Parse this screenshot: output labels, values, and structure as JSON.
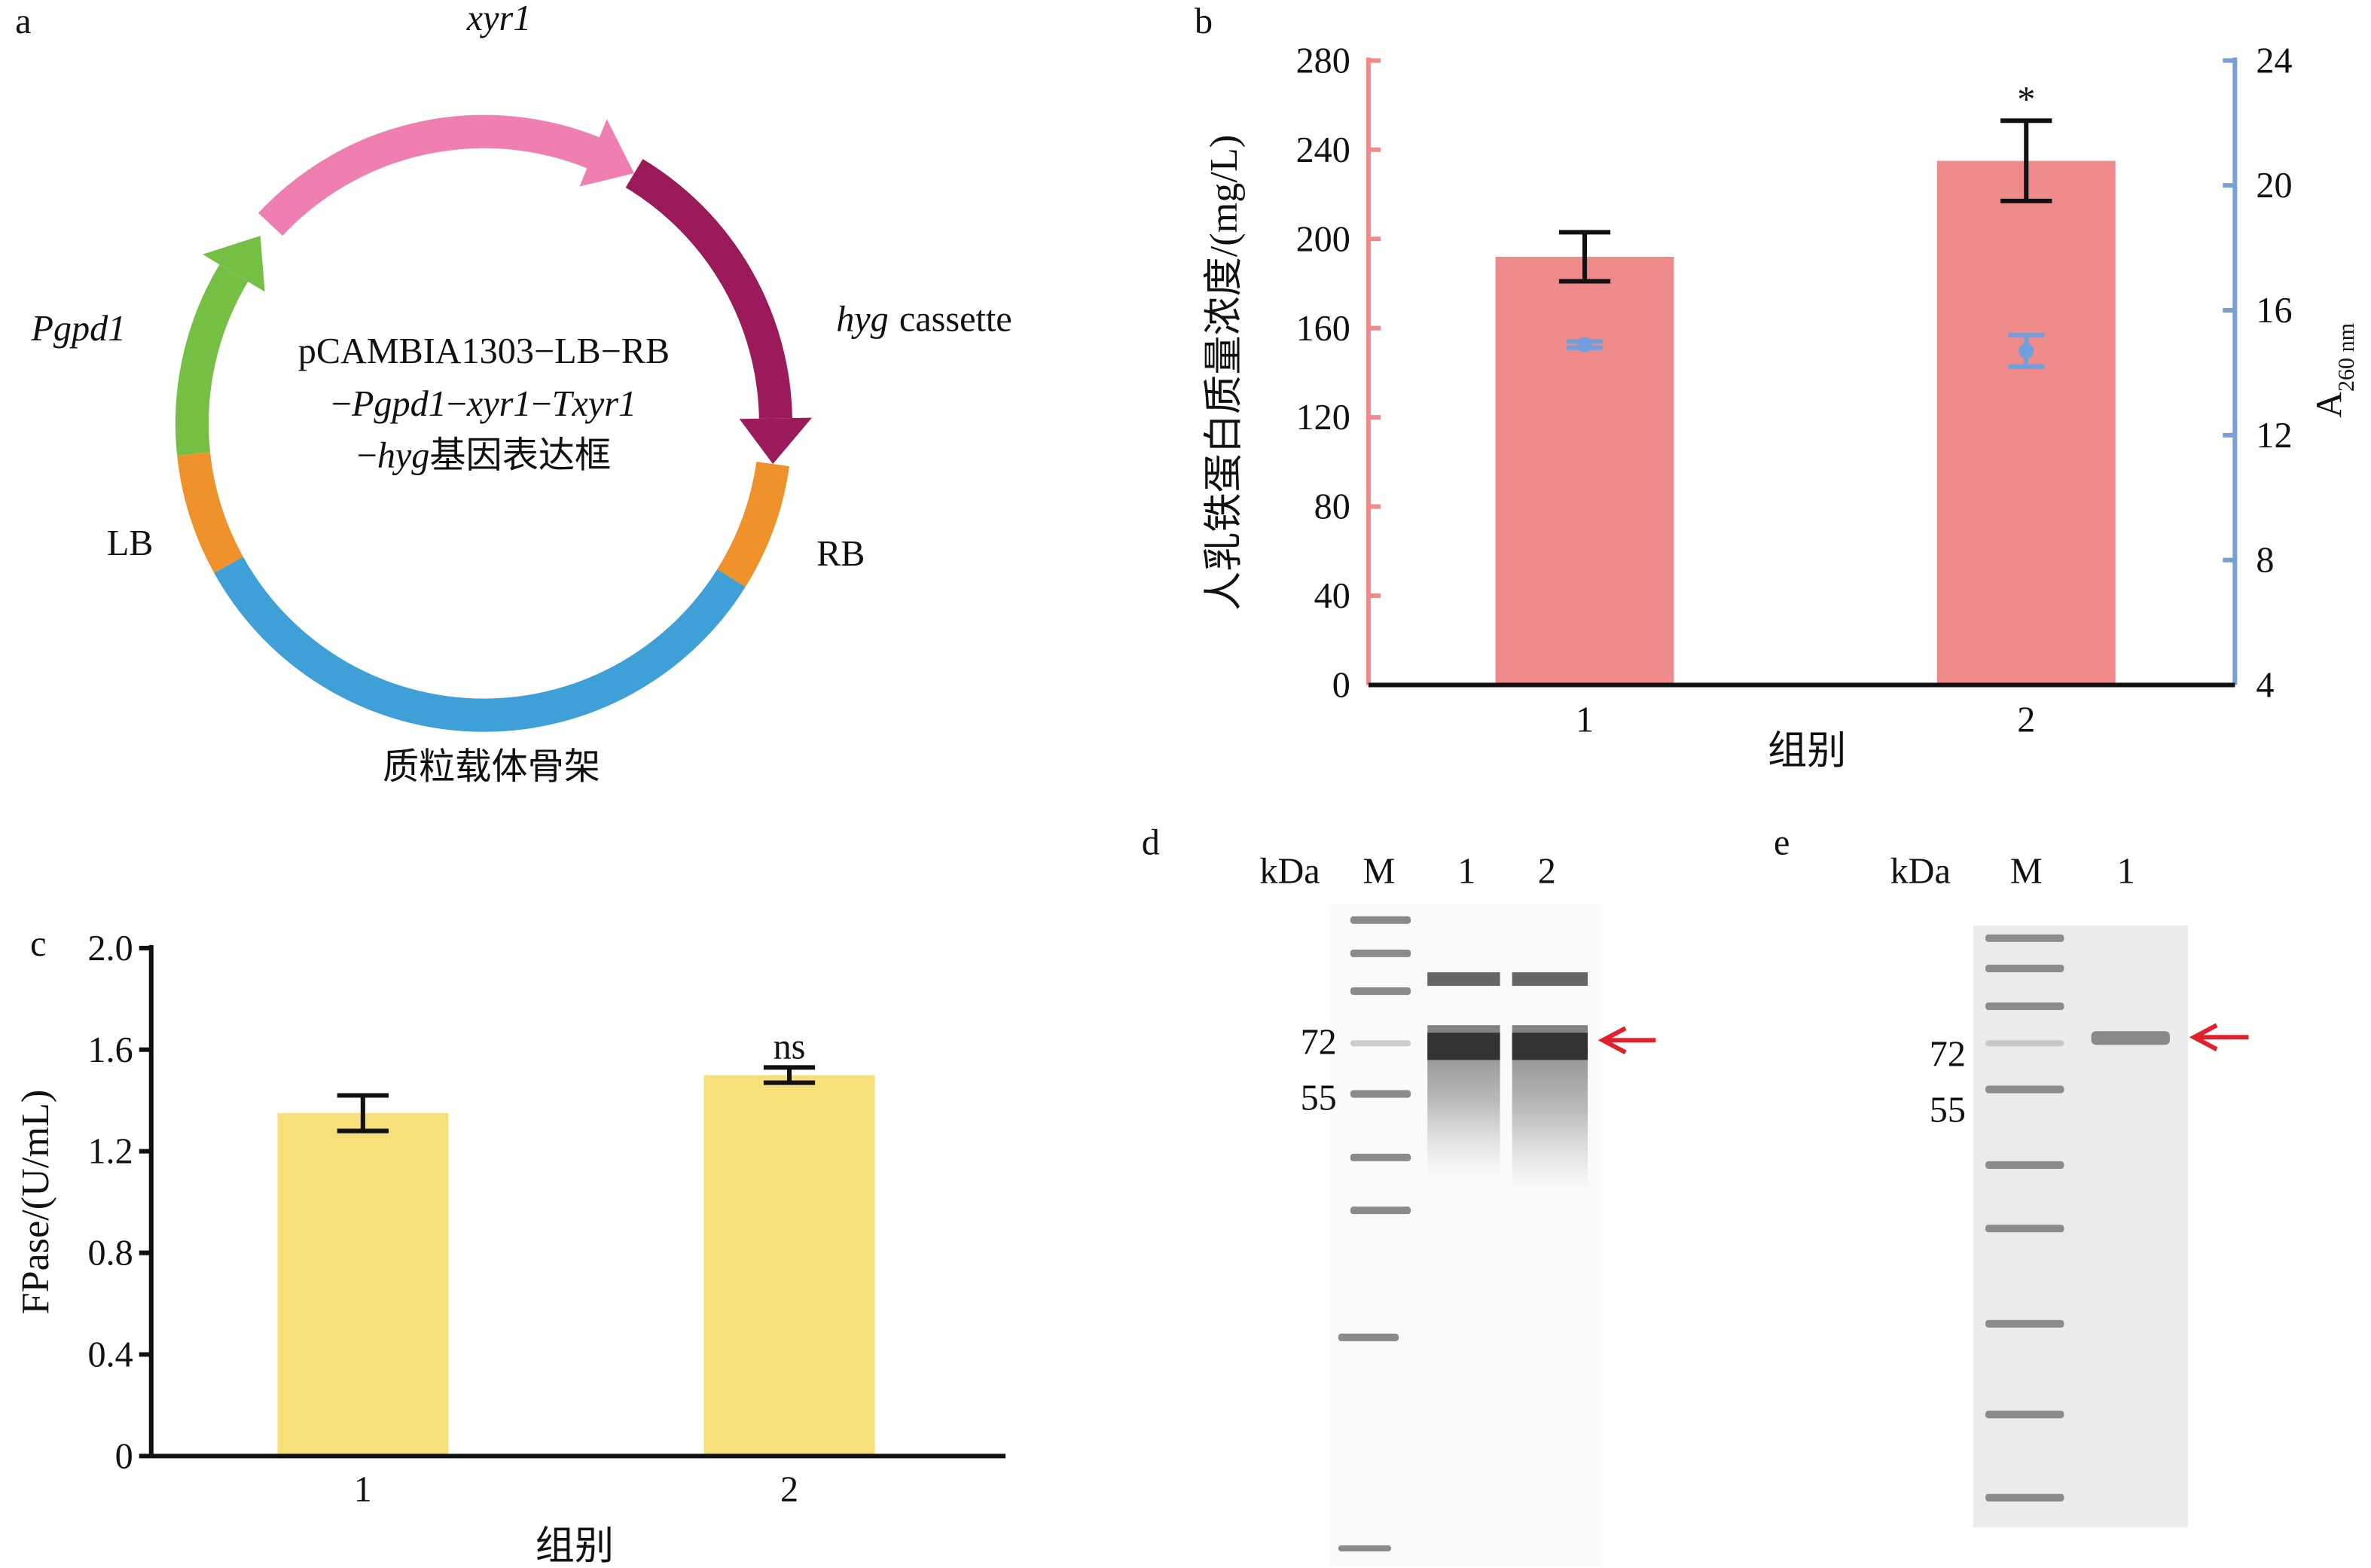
{
  "panel_labels": [
    "a",
    "b",
    "c",
    "d",
    "e"
  ],
  "plasmid": {
    "labels": {
      "xyr1": "xyr1",
      "hyg": "hyg",
      "cassette": "cassette",
      "pgpd1": "Pgpd1",
      "lb": "LB",
      "rb": "RB",
      "backbone": "质粒载体骨架"
    },
    "center_lines": [
      [
        "pCAMBIA1303−LB−RB"
      ],
      [
        "−",
        "Pgpd1",
        "−",
        "xyr1",
        "−",
        "Txyr1"
      ],
      [
        "−",
        "hyg",
        "基因表达框"
      ]
    ]
  },
  "chart_data": [
    {
      "type": "bar",
      "categories": [
        "1",
        "2"
      ],
      "xlabel": "组别",
      "ylabel": "人乳铁蛋白质量浓度/(mg/L)",
      "y2label": "A",
      "y2label_subscript": "260 nm",
      "series": [
        {
          "color": "#ef8a8a",
          "values": [
            192,
            235
          ],
          "errors": [
            11,
            18
          ]
        },
        {
          "type": "scatter",
          "axis": "y2",
          "color": "#6f9fdc",
          "values": [
            14.9,
            14.7
          ],
          "errors": [
            0.1,
            0.5
          ]
        }
      ],
      "annotations": [
        null,
        "*"
      ],
      "ylim": [
        0,
        280
      ],
      "yticks": [
        0,
        40,
        80,
        120,
        160,
        200,
        240,
        280
      ],
      "y2lim": [
        4,
        24
      ],
      "y2ticks": [
        4,
        8,
        12,
        16,
        20,
        24
      ],
      "axis_colors": {
        "y": "#f08a8a",
        "y2": "#7a9ed6"
      }
    },
    {
      "type": "bar",
      "categories": [
        "1",
        "2"
      ],
      "xlabel": "组别",
      "ylabel": "FPase/(U/mL)",
      "color": "#f7e07a",
      "values": [
        1.35,
        1.5
      ],
      "errors": [
        0.07,
        0.03
      ],
      "annotations": [
        null,
        "ns"
      ],
      "ylim": [
        0,
        2
      ],
      "yticks": [
        0,
        0.4,
        0.8,
        1.2,
        1.6,
        {
          "value": 2,
          "label": "2.0"
        }
      ]
    }
  ],
  "gels": [
    {
      "unit": "kDa",
      "lanes": [
        "M",
        "1",
        "2"
      ],
      "markers": [
        72,
        55
      ]
    },
    {
      "unit": "kDa",
      "lanes": [
        "M",
        "1"
      ],
      "markers": [
        72,
        55
      ]
    }
  ]
}
